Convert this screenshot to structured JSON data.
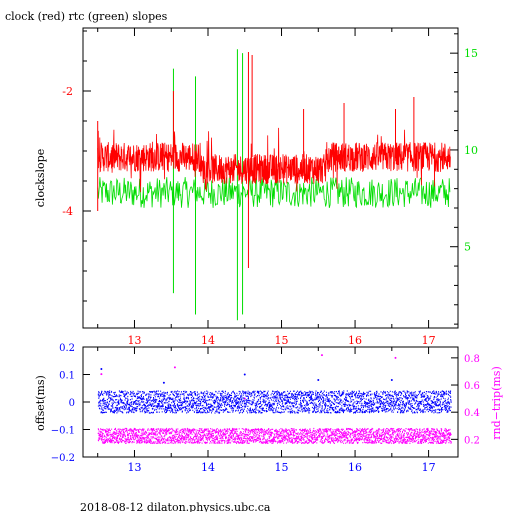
{
  "title": "clock (red) rtc (green) slopes",
  "footer": "2018-08-12 dilaton.physics.ubc.ca",
  "colors": {
    "axes": "#000000",
    "clock": "#ff0000",
    "rtc": "#00dd00",
    "offset": "#0000ff",
    "rtt": "#ff00ff"
  },
  "chart_data": [
    {
      "type": "line",
      "title": "clock (red) rtc (green) slopes",
      "ylabel": "clockslope",
      "y2label": "",
      "xlim": [
        12.3,
        17.4
      ],
      "ylim": [
        -5.95,
        -0.95
      ],
      "y2lim": [
        0.8,
        16.3
      ],
      "x_ticks": [
        "13",
        "14",
        "15",
        "16",
        "17"
      ],
      "y_ticks": [
        "-2",
        "-4"
      ],
      "y2_ticks": [
        "15",
        "10",
        "5"
      ],
      "grid": false,
      "series": [
        {
          "name": "clock",
          "color": "#ff0000",
          "x_range": [
            12.5,
            17.3
          ],
          "baseline": -3.1,
          "typical_band": [
            -3.7,
            -2.6
          ],
          "spikes": [
            [
              12.5,
              -2.5
            ],
            [
              12.5,
              -4.0
            ],
            [
              13.53,
              -2.0
            ],
            [
              14.55,
              -1.35
            ],
            [
              14.55,
              -4.95
            ],
            [
              14.6,
              -1.4
            ],
            [
              15.3,
              -2.3
            ],
            [
              15.85,
              -2.2
            ],
            [
              16.55,
              -2.3
            ],
            [
              16.8,
              -2.1
            ]
          ]
        },
        {
          "name": "rtc",
          "color": "#00dd00",
          "axis": "right",
          "x_range": [
            12.5,
            17.3
          ],
          "baseline": 7.8,
          "spikes": [
            [
              13.53,
              14.2
            ],
            [
              13.53,
              2.6
            ],
            [
              13.83,
              13.8
            ],
            [
              13.83,
              1.5
            ],
            [
              14.4,
              15.2
            ],
            [
              14.4,
              1.2
            ],
            [
              14.47,
              15.0
            ],
            [
              14.47,
              1.5
            ]
          ]
        }
      ]
    },
    {
      "type": "scatter",
      "ylabel": "offset(ms)",
      "y2label": "rnd−trip(ms)",
      "xlim": [
        12.3,
        17.4
      ],
      "ylim": [
        -0.2,
        0.2
      ],
      "y2lim": [
        0.07,
        0.88
      ],
      "x_ticks": [
        "13",
        "14",
        "15",
        "16",
        "17"
      ],
      "y_ticks": [
        "0.2",
        "0.1",
        "0",
        "−0.1",
        "−0.2"
      ],
      "y2_ticks": [
        "0.8",
        "0.6",
        "0.4",
        "0.2"
      ],
      "grid": false,
      "series": [
        {
          "name": "offset",
          "color": "#0000ff",
          "axis": "left",
          "x_range": [
            12.5,
            17.3
          ],
          "center": 0.0,
          "band": [
            -0.04,
            0.04
          ],
          "outliers": [
            [
              12.55,
              0.12
            ],
            [
              13.4,
              0.07
            ],
            [
              14.5,
              0.1
            ],
            [
              15.5,
              0.08
            ],
            [
              16.5,
              0.08
            ]
          ]
        },
        {
          "name": "rtt",
          "color": "#ff00ff",
          "axis": "right",
          "x_range": [
            12.5,
            17.3
          ],
          "center": 0.23,
          "band": [
            0.17,
            0.28
          ],
          "outliers": [
            [
              12.55,
              0.68
            ],
            [
              13.55,
              0.73
            ],
            [
              14.5,
              0.5
            ],
            [
              15.55,
              0.82
            ],
            [
              16.55,
              0.8
            ]
          ]
        }
      ]
    }
  ]
}
